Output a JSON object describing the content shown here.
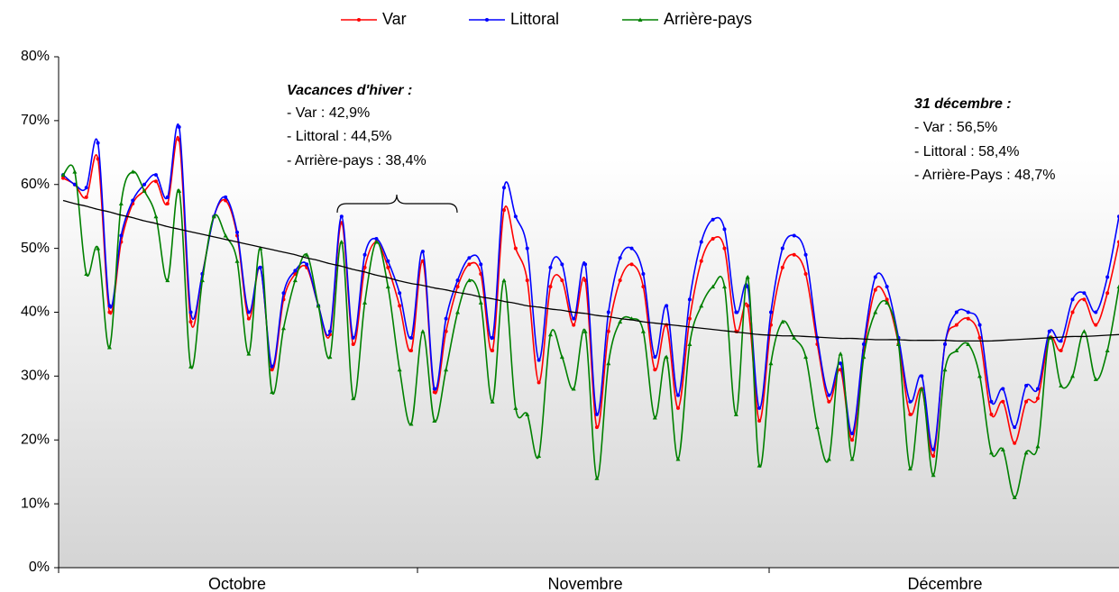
{
  "chart_data": {
    "type": "line",
    "categories": [
      null,
      null,
      null,
      null,
      null,
      null,
      null,
      null,
      null,
      null,
      null,
      null,
      null,
      null,
      null,
      "Octobre",
      null,
      null,
      null,
      null,
      null,
      null,
      null,
      null,
      null,
      null,
      null,
      null,
      null,
      null,
      null,
      null,
      null,
      null,
      null,
      null,
      null,
      null,
      null,
      null,
      null,
      null,
      null,
      null,
      null,
      "Novembre",
      null,
      null,
      null,
      null,
      null,
      null,
      null,
      null,
      null,
      null,
      null,
      null,
      null,
      null,
      null,
      null,
      null,
      null,
      null,
      null,
      null,
      null,
      null,
      null,
      null,
      null,
      null,
      null,
      null,
      null,
      "Décembre",
      null,
      null,
      null,
      null,
      null,
      null,
      null,
      null,
      null,
      null,
      null,
      null,
      null,
      null,
      null
    ],
    "ylim": [
      0,
      80
    ],
    "yticks": [
      {
        "value": 0,
        "label": "0%"
      },
      {
        "value": 10,
        "label": "10%"
      },
      {
        "value": 20,
        "label": "20%"
      },
      {
        "value": 30,
        "label": "30%"
      },
      {
        "value": 40,
        "label": "40%"
      },
      {
        "value": 50,
        "label": "50%"
      },
      {
        "value": 60,
        "label": "60%"
      },
      {
        "value": 70,
        "label": "70%"
      },
      {
        "value": 80,
        "label": "80%"
      }
    ],
    "legend": "top",
    "series": [
      {
        "name": "Var",
        "color": "#ff0000",
        "marker": "circle",
        "values": [
          61,
          60,
          58,
          64,
          40,
          51,
          57,
          59,
          60.5,
          57,
          67,
          38.5,
          46,
          55,
          57.5,
          52,
          39,
          47,
          31,
          42,
          46,
          47,
          41,
          36.5,
          54,
          35,
          47,
          51,
          47,
          41,
          34,
          48,
          27.5,
          37,
          44,
          47.5,
          46,
          34,
          56,
          50,
          45,
          29,
          44,
          45,
          38,
          45,
          22,
          37,
          45,
          47.5,
          44,
          31,
          38,
          25,
          39,
          48,
          51.5,
          50,
          37,
          41,
          23,
          38,
          47,
          49,
          46,
          35,
          26,
          31,
          20,
          34,
          43.5,
          42,
          35,
          24,
          28,
          17.5,
          35,
          38,
          39,
          36,
          24,
          26,
          19.5,
          26,
          26.5,
          36,
          34,
          40,
          42,
          38,
          43,
          51
        ]
      },
      {
        "name": "Littoral",
        "color": "#0000ff",
        "marker": "circle",
        "values": [
          61.5,
          60,
          59.5,
          66.5,
          41,
          52,
          57.5,
          60,
          61.5,
          58,
          69,
          40,
          46,
          55,
          58,
          52.5,
          40,
          47,
          31.5,
          43,
          46.5,
          47.5,
          41,
          37,
          55,
          36,
          49,
          51.5,
          48,
          43,
          36,
          49.5,
          28,
          39,
          45,
          48.5,
          47.5,
          36,
          59.5,
          55,
          50,
          32.5,
          47,
          47.5,
          39,
          47.5,
          24,
          40,
          48.5,
          50,
          46,
          33,
          41,
          27,
          42,
          51,
          54.5,
          53,
          40,
          44,
          25,
          40,
          50,
          52,
          49,
          36,
          27,
          32,
          21,
          35,
          45.5,
          44,
          36,
          26,
          30,
          18.5,
          35,
          40,
          40,
          38,
          26,
          28,
          22,
          28.5,
          28,
          37,
          35.5,
          42,
          43,
          40,
          45.5,
          55
        ]
      },
      {
        "name": "Arrière-pays",
        "color": "#008000",
        "marker": "triangle",
        "values": [
          61.5,
          62,
          46,
          50,
          34.5,
          57,
          62,
          59,
          55,
          45,
          59,
          31.5,
          45,
          55,
          52,
          48,
          33.5,
          50,
          27.5,
          37.5,
          45,
          49,
          41,
          33,
          51,
          26.5,
          41.5,
          51,
          44,
          31,
          22.5,
          37,
          23,
          31,
          40,
          45,
          41.5,
          26,
          45,
          25,
          24,
          17.5,
          36.5,
          33,
          28,
          37,
          14,
          32,
          38.5,
          39,
          37,
          23.5,
          33,
          17,
          35,
          41,
          44,
          44,
          24,
          45.5,
          16,
          32,
          38.5,
          36,
          33,
          22,
          17,
          33.5,
          17,
          33,
          40,
          41.5,
          35,
          15.5,
          28,
          14.5,
          31,
          34,
          35,
          30,
          18,
          18.5,
          11,
          18,
          19,
          36,
          28.5,
          30,
          37,
          29.5,
          34,
          44
        ]
      },
      {
        "color": "#000000",
        "marker": "none",
        "values": [
          57.5,
          57.0,
          56.6,
          56.1,
          55.7,
          55.2,
          54.8,
          54.3,
          53.9,
          53.4,
          53.0,
          52.6,
          52.2,
          51.8,
          51.4,
          51.0,
          50.6,
          50.2,
          49.8,
          49.4,
          49.0,
          48.5,
          48.1,
          47.6,
          47.2,
          46.7,
          46.3,
          45.8,
          45.4,
          44.9,
          44.5,
          44.2,
          43.8,
          43.5,
          43.1,
          42.8,
          42.4,
          42.1,
          41.7,
          41.4,
          41.0,
          40.8,
          40.5,
          40.3,
          40.0,
          39.8,
          39.5,
          39.3,
          39.0,
          38.8,
          38.5,
          38.3,
          38.1,
          37.9,
          37.7,
          37.5,
          37.3,
          37.1,
          36.9,
          36.7,
          36.5,
          36.4,
          36.3,
          36.3,
          36.2,
          36.1,
          36.0,
          35.9,
          35.9,
          35.8,
          35.7,
          35.7,
          35.7,
          35.6,
          35.6,
          35.6,
          35.6,
          35.5,
          35.5,
          35.5,
          35.5,
          35.6,
          35.7,
          35.8,
          35.9,
          36.0,
          36.1,
          36.2,
          36.2,
          36.3,
          36.4,
          36.5
        ]
      }
    ],
    "annotations": [
      {
        "title": "Vacances d'hiver :",
        "lines": [
          "- Var : 42,9%",
          "- Littoral : 44,5%",
          "- Arrière-pays : 38,4%"
        ]
      },
      {
        "title": "31 décembre :",
        "lines": [
          "- Var : 56,5%",
          "- Littoral : 58,4%",
          "- Arrière-Pays : 48,7%"
        ]
      }
    ]
  }
}
